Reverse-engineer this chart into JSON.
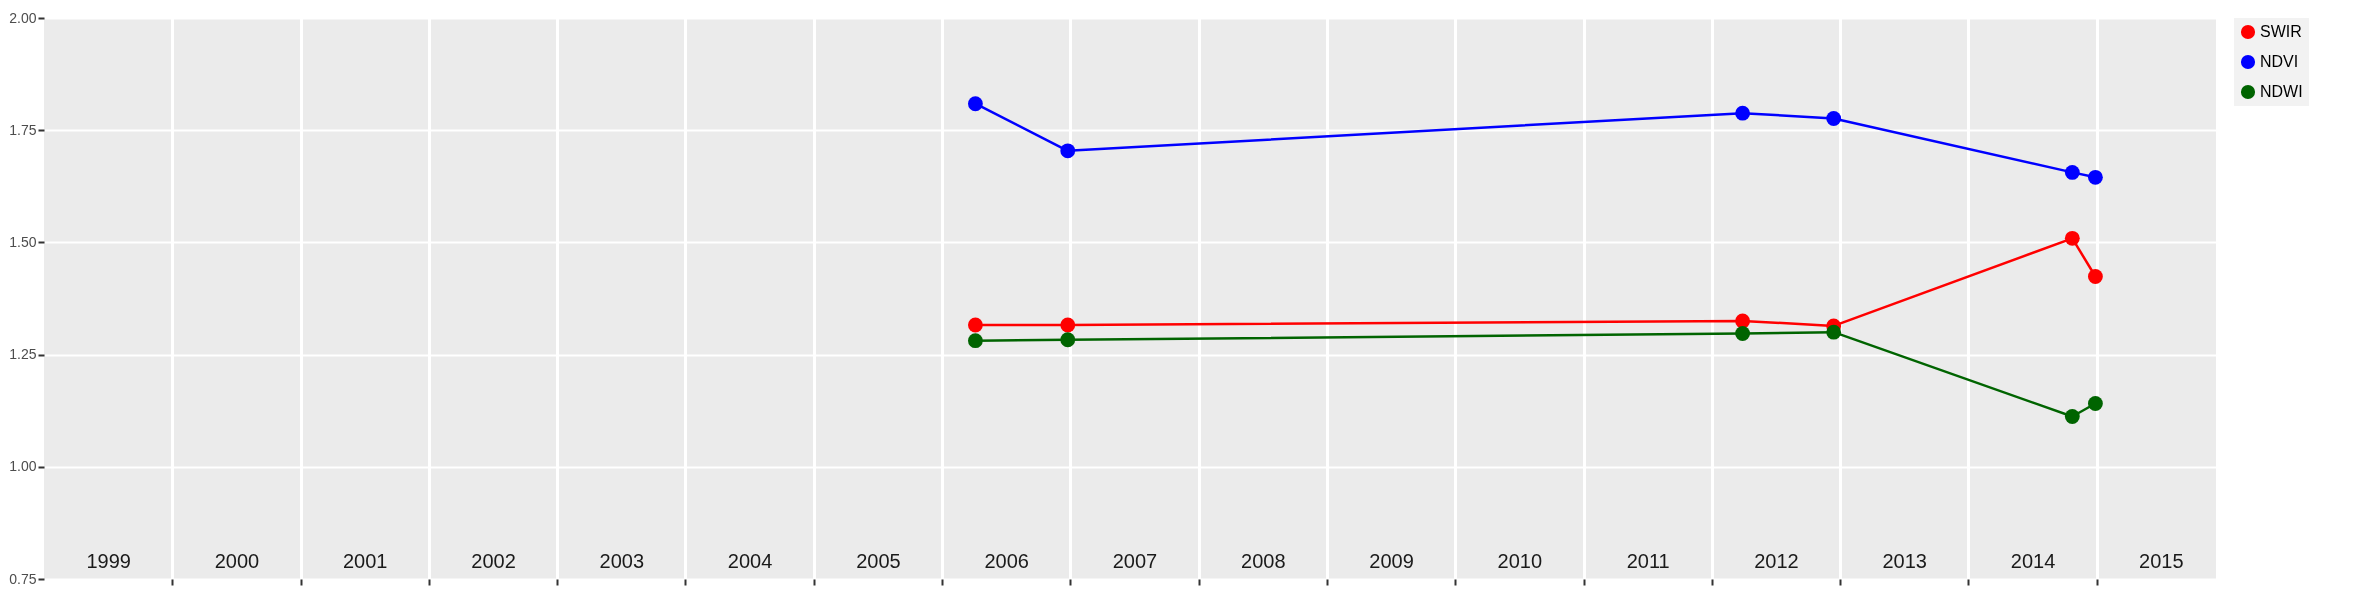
{
  "chart_data": {
    "type": "line",
    "x": [
      2006.26,
      2006.98,
      2012.24,
      2012.95,
      2014.81,
      2014.99
    ],
    "series": [
      {
        "name": "SWIR",
        "color": "#ff0000",
        "values": [
          1.316,
          1.316,
          1.325,
          1.314,
          1.509,
          1.424
        ]
      },
      {
        "name": "NDVI",
        "color": "#0000ff",
        "values": [
          1.809,
          1.704,
          1.788,
          1.776,
          1.656,
          1.645
        ]
      },
      {
        "name": "NDWI",
        "color": "#006400",
        "values": [
          1.281,
          1.283,
          1.297,
          1.3,
          1.112,
          1.141
        ]
      }
    ],
    "xlim": [
      1999,
      2015.93
    ],
    "xticks": [
      {
        "value": 2000,
        "label": null
      },
      {
        "value": 2001,
        "label": null
      },
      {
        "value": 2002,
        "label": null
      },
      {
        "value": 2003,
        "label": null
      },
      {
        "value": 2004,
        "label": null
      },
      {
        "value": 2005,
        "label": null
      },
      {
        "value": 2006,
        "label": null
      },
      {
        "value": 2007,
        "label": null
      },
      {
        "value": 2008,
        "label": null
      },
      {
        "value": 2009,
        "label": null
      },
      {
        "value": 2010,
        "label": null
      },
      {
        "value": 2011,
        "label": null
      },
      {
        "value": 2012,
        "label": null
      },
      {
        "value": 2013,
        "label": null
      },
      {
        "value": 2014,
        "label": null
      },
      {
        "value": 2015,
        "label": null
      },
      {
        "value": 1999.5,
        "label": "1999"
      },
      {
        "value": 2000.5,
        "label": "2000"
      },
      {
        "value": 2001.5,
        "label": "2001"
      },
      {
        "value": 2002.5,
        "label": "2002"
      },
      {
        "value": 2003.5,
        "label": "2003"
      },
      {
        "value": 2004.5,
        "label": "2004"
      },
      {
        "value": 2005.5,
        "label": "2005"
      },
      {
        "value": 2006.5,
        "label": "2006"
      },
      {
        "value": 2007.5,
        "label": "2007"
      },
      {
        "value": 2008.5,
        "label": "2008"
      },
      {
        "value": 2009.5,
        "label": "2009"
      },
      {
        "value": 2010.5,
        "label": "2010"
      },
      {
        "value": 2011.5,
        "label": "2011"
      },
      {
        "value": 2012.5,
        "label": "2012"
      },
      {
        "value": 2013.5,
        "label": "2013"
      },
      {
        "value": 2014.5,
        "label": "2014"
      },
      {
        "value": 2015.5,
        "label": "2015"
      }
    ],
    "ylim": [
      0.75,
      2.0
    ],
    "yticks": [
      {
        "value": 0.75,
        "label": "0.75"
      },
      {
        "value": 1.0,
        "label": "1.00"
      },
      {
        "value": 1.25,
        "label": "1.25"
      },
      {
        "value": 1.5,
        "label": "1.50"
      },
      {
        "value": 1.75,
        "label": "1.75"
      },
      {
        "value": 2.0,
        "label": "2.00"
      }
    ],
    "grid": true,
    "legend": "right",
    "marker": "circle",
    "line_style": "solid"
  }
}
